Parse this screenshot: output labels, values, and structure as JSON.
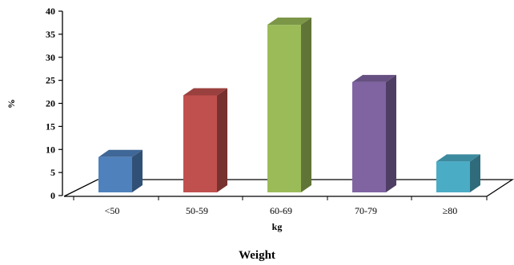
{
  "chart_data": {
    "type": "bar",
    "style": "3d-column",
    "categories": [
      "<50",
      "50-59",
      "60-69",
      "70-79",
      "≥80"
    ],
    "values": [
      8,
      22,
      38,
      25,
      7
    ],
    "colors": [
      "#4f81bd",
      "#c0504d",
      "#9bbb59",
      "#8064a2",
      "#4bacc6"
    ],
    "ylabel": "%",
    "xlabel": "kg",
    "ylim": [
      0,
      40
    ],
    "yticks": [
      0,
      5,
      10,
      15,
      20,
      25,
      30,
      35,
      40
    ],
    "grid": false,
    "legend": "none"
  },
  "caption": "Weight"
}
